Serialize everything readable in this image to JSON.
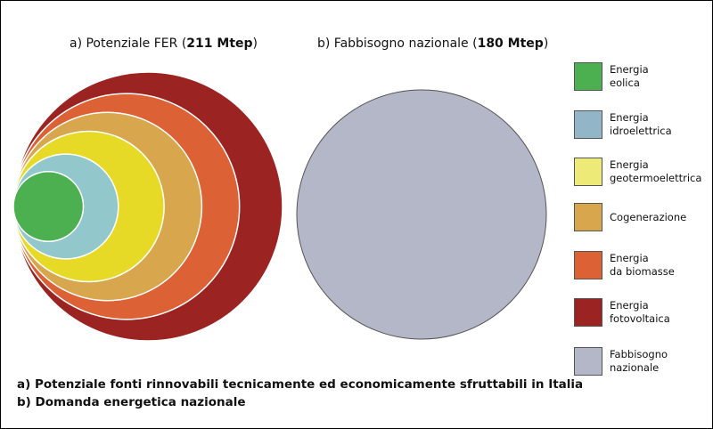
{
  "chart_data": [
    {
      "type": "nested-area",
      "title_prefix": "a) Potenziale FER (",
      "title_value": "211 Mtep",
      "title_suffix": ")",
      "total_mtep": 211,
      "series": [
        {
          "name": "Energia\neolica",
          "color": "#4caf50",
          "relative_size": 0.26
        },
        {
          "name": "Energia\nidroelettrica",
          "color": "#92c8cb",
          "relative_size": 0.39
        },
        {
          "name": "Energia\ngeotermoelettrica",
          "color": "#e7da26",
          "relative_size": 0.56
        },
        {
          "name": "Cogenerazione",
          "color": "#d8a64d",
          "relative_size": 0.7
        },
        {
          "name": "Energia\nda biomasse",
          "color": "#dc6135",
          "relative_size": 0.84
        },
        {
          "name": "Energia\nfotovoltaica",
          "color": "#9b2322",
          "relative_size": 1.0
        }
      ]
    },
    {
      "type": "area",
      "title_prefix": "b) Fabbisogno nazionale (",
      "title_value": "180 Mtep",
      "title_suffix": ")",
      "total_mtep": 180,
      "series": [
        {
          "name": "Fabbisogno\nnazionale",
          "color": "#b3b7c8",
          "relative_size": 1.0
        }
      ]
    }
  ],
  "legend": [
    {
      "label": "Energia\neolica",
      "color": "#4caf50"
    },
    {
      "label": "Energia\nidroelettrica",
      "color": "#92b5c8"
    },
    {
      "label": "Energia\ngeotermoelettrica",
      "color": "#eeea78"
    },
    {
      "label": "Cogenerazione",
      "color": "#d8a64d"
    },
    {
      "label": "Energia\nda biomasse",
      "color": "#dc6135"
    },
    {
      "label": "Energia\nfotovoltaica",
      "color": "#9b2322"
    },
    {
      "label": "Fabbisogno\nnazionale",
      "color": "#b3b7c8"
    }
  ],
  "captions": {
    "a": "a) Potenziale fonti rinnovabili tecnicamente ed economicamente sfruttabili in Italia",
    "b": "b) Domanda energetica nazionale"
  }
}
